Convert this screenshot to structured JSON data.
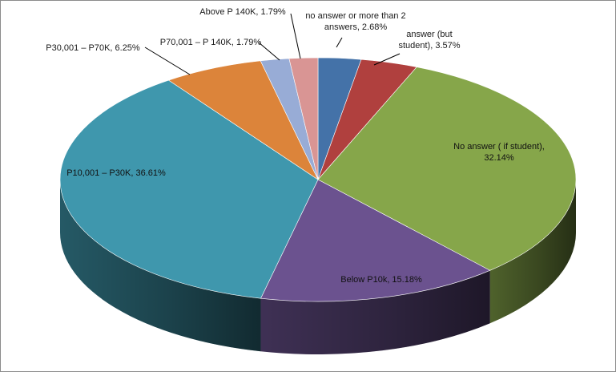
{
  "chart_data": {
    "type": "pie",
    "title": "",
    "legend": "none",
    "three_d": true,
    "slices": [
      {
        "label": "no answer or more than 2 answers",
        "value": 2.68,
        "text": "no answer or more than 2 answers, 2.68%",
        "color": "#4472a8"
      },
      {
        "label": "answer (but student)",
        "value": 3.57,
        "text": "answer (but student), 3.57%",
        "color": "#b0403e"
      },
      {
        "label": "No answer ( if student)",
        "value": 32.14,
        "text": "No answer ( if student), 32.14%",
        "color": "#86a64a"
      },
      {
        "label": "Below P10k",
        "value": 15.18,
        "text": "Below P10k, 15.18%",
        "color": "#6b528f"
      },
      {
        "label": "P10,001 – P30K",
        "value": 36.61,
        "text": "P10,001 – P30K, 36.61%",
        "color": "#3f97ad"
      },
      {
        "label": "P30,001 – P70K",
        "value": 6.25,
        "text": "P30,001 – P70K, 6.25%",
        "color": "#dc843a"
      },
      {
        "label": "P70,001 – P 140K",
        "value": 1.79,
        "text": "P70,001 – P 140K, 1.79%",
        "color": "#98acd6"
      },
      {
        "label": "Above P 140K",
        "value": 1.79,
        "text": "Above P 140K, 1.79%",
        "color": "#d99594"
      }
    ]
  }
}
